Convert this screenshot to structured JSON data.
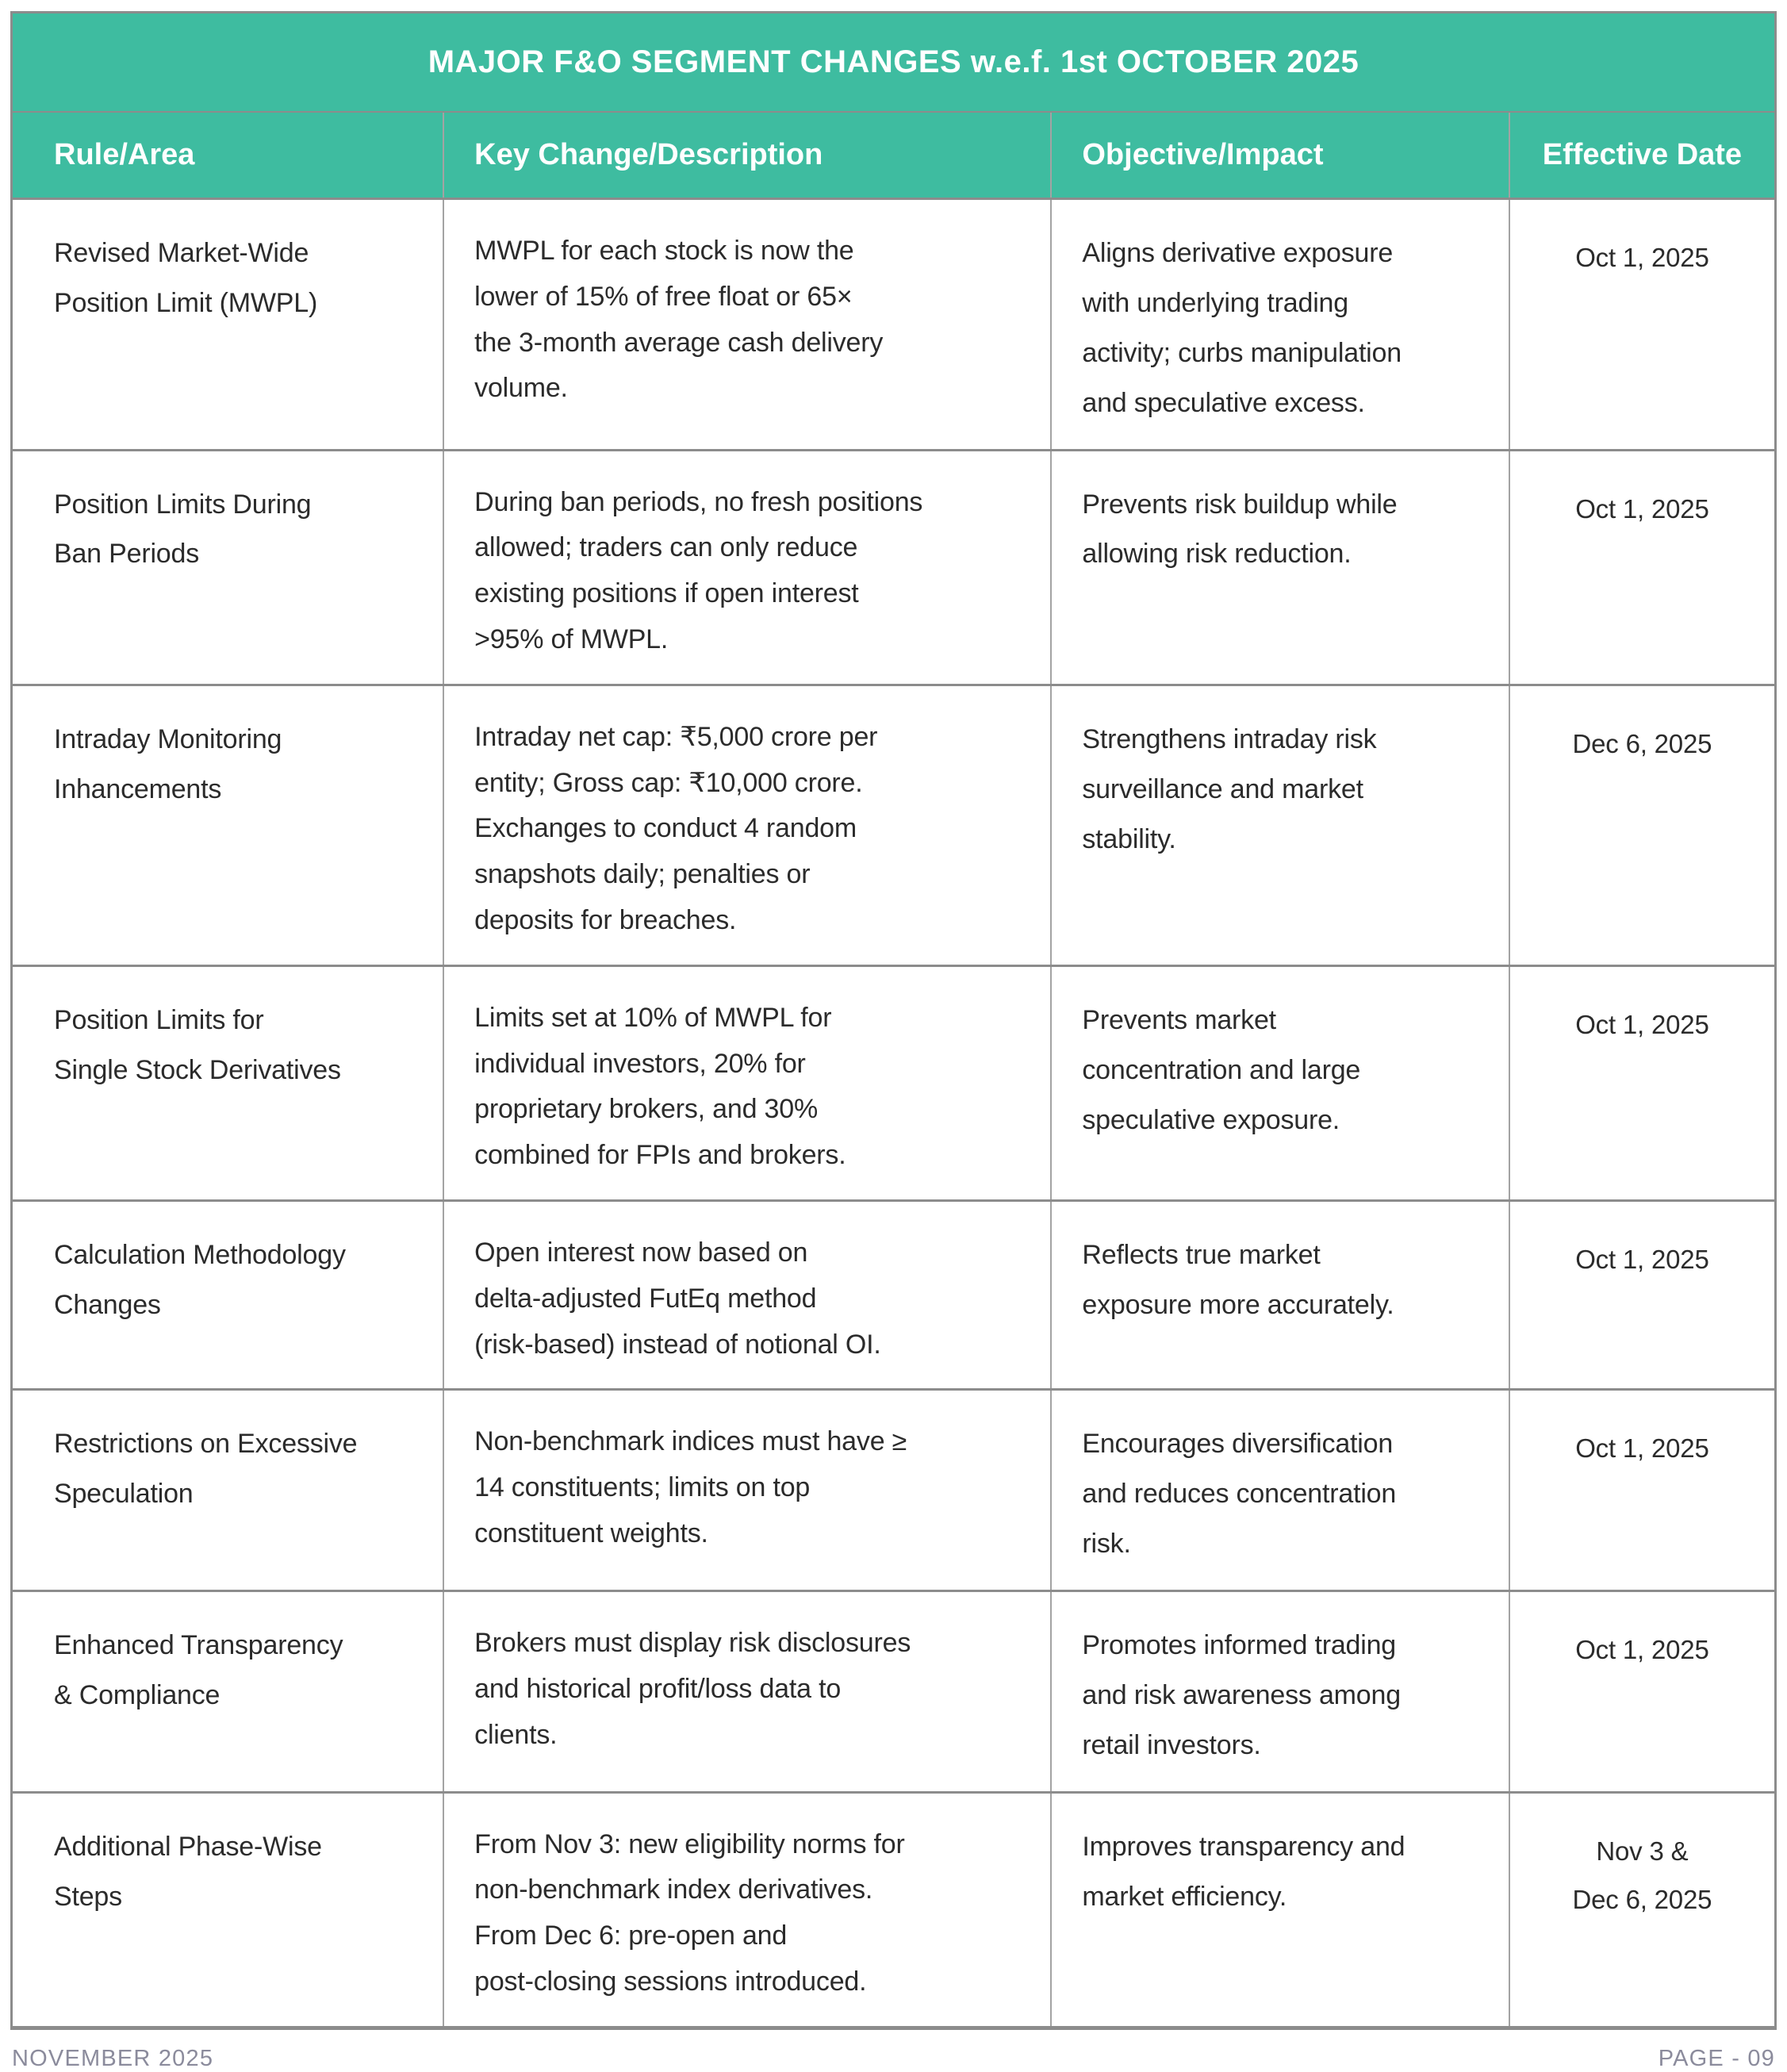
{
  "page": {
    "title": "MAJOR F&O SEGMENT CHANGES w.e.f. 1st OCTOBER 2025",
    "columns": [
      "Rule/Area",
      "Key Change/Description",
      "Objective/Impact",
      "Effective Date"
    ],
    "rows": [
      {
        "rule": "Revised Market-Wide\nPosition Limit (MWPL)",
        "change": "MWPL for each stock is now the\nlower of 15% of free float or 65×\nthe 3-month average cash delivery\nvolume.",
        "objective": "Aligns derivative exposure\nwith underlying trading\nactivity; curbs manipulation\nand speculative excess.",
        "date": "Oct 1, 2025"
      },
      {
        "rule": "Position Limits During\nBan Periods",
        "change": "During ban periods, no fresh positions\nallowed; traders can only reduce\nexisting positions if open interest\n>95% of MWPL.",
        "objective": "Prevents risk buildup while\nallowing risk reduction.",
        "date": "Oct 1, 2025"
      },
      {
        "rule": "Intraday Monitoring\nInhancements",
        "change": "Intraday net cap: ₹5,000 crore per\nentity; Gross cap: ₹10,000 crore.\nExchanges to conduct 4 random\nsnapshots daily; penalties or\ndeposits for breaches.",
        "objective": "Strengthens intraday risk\nsurveillance and market\nstability.",
        "date": "Dec 6, 2025"
      },
      {
        "rule": "Position Limits for\nSingle Stock Derivatives",
        "change": "Limits set at 10% of MWPL for\nindividual investors, 20% for\nproprietary brokers, and 30%\ncombined for FPIs and brokers.",
        "objective": "Prevents market\nconcentration and large\nspeculative exposure.",
        "date": "Oct 1, 2025"
      },
      {
        "rule": "Calculation Methodology\nChanges",
        "change": "Open interest now based on\ndelta-adjusted FutEq method\n(risk-based) instead of notional OI.",
        "objective": "Reflects true market\nexposure more accurately.",
        "date": "Oct 1, 2025"
      },
      {
        "rule": "Restrictions on Excessive\nSpeculation",
        "change": "Non-benchmark indices must have ≥\n14 constituents; limits on top\nconstituent weights.",
        "objective": "Encourages diversification\nand reduces concentration\nrisk.",
        "date": "Oct 1, 2025"
      },
      {
        "rule": "Enhanced Transparency\n& Compliance",
        "change": "Brokers must display risk disclosures\nand historical profit/loss data to\nclients.",
        "objective": "Promotes informed trading\nand risk awareness among\nretail investors.",
        "date": "Oct 1, 2025"
      },
      {
        "rule": "Additional Phase-Wise\nSteps",
        "change": "From Nov 3: new eligibility norms for\nnon-benchmark index derivatives.\nFrom Dec 6: pre-open and\npost-closing sessions introduced.",
        "objective": "Improves transparency and\nmarket efficiency.",
        "date": "Nov 3 &\nDec 6, 2025"
      }
    ],
    "footer": {
      "left": "NOVEMBER 2025",
      "right": "PAGE - 09"
    },
    "colors": {
      "header_teal": "#3ebca0",
      "border_gray": "#8c8c8c",
      "body_text": "#2b2b2b",
      "footer_text": "#8b8b9c"
    }
  }
}
